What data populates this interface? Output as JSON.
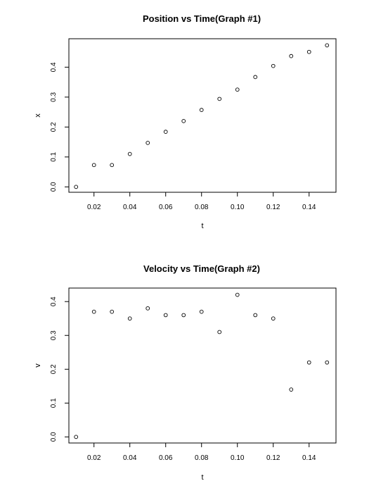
{
  "chart_data": [
    {
      "type": "scatter",
      "title": "Position vs Time(Graph #1)",
      "xlabel": "t",
      "ylabel": "x",
      "xlim": [
        0.006,
        0.155
      ],
      "ylim": [
        -0.018,
        0.495
      ],
      "xticks": [
        0.02,
        0.04,
        0.06,
        0.08,
        0.1,
        0.12,
        0.14
      ],
      "xtick_labels": [
        "0.02",
        "0.04",
        "0.06",
        "0.08",
        "0.10",
        "0.12",
        "0.14"
      ],
      "yticks": [
        0.0,
        0.1,
        0.2,
        0.3,
        0.4
      ],
      "ytick_labels": [
        "0.0",
        "0.1",
        "0.2",
        "0.3",
        "0.4"
      ],
      "grid": false,
      "x": [
        0.01,
        0.02,
        0.03,
        0.04,
        0.05,
        0.06,
        0.07,
        0.08,
        0.09,
        0.1,
        0.11,
        0.12,
        0.13,
        0.14,
        0.15
      ],
      "y": [
        0.0,
        0.073,
        0.073,
        0.11,
        0.147,
        0.184,
        0.22,
        0.257,
        0.294,
        0.325,
        0.367,
        0.404,
        0.437,
        0.451,
        0.473
      ]
    },
    {
      "type": "scatter",
      "title": "Velocity vs Time(Graph #2)",
      "xlabel": "t",
      "ylabel": "v",
      "xlim": [
        0.006,
        0.155
      ],
      "ylim": [
        -0.018,
        0.44
      ],
      "xticks": [
        0.02,
        0.04,
        0.06,
        0.08,
        0.1,
        0.12,
        0.14
      ],
      "xtick_labels": [
        "0.02",
        "0.04",
        "0.06",
        "0.08",
        "0.10",
        "0.12",
        "0.14"
      ],
      "yticks": [
        0.0,
        0.1,
        0.2,
        0.3,
        0.4
      ],
      "ytick_labels": [
        "0.0",
        "0.1",
        "0.2",
        "0.3",
        "0.4"
      ],
      "grid": false,
      "x": [
        0.01,
        0.02,
        0.03,
        0.04,
        0.05,
        0.06,
        0.07,
        0.08,
        0.09,
        0.1,
        0.11,
        0.12,
        0.13,
        0.14,
        0.15
      ],
      "y": [
        0.0,
        0.37,
        0.37,
        0.35,
        0.38,
        0.36,
        0.36,
        0.37,
        0.31,
        0.42,
        0.36,
        0.35,
        0.14,
        0.22,
        0.22
      ]
    }
  ]
}
